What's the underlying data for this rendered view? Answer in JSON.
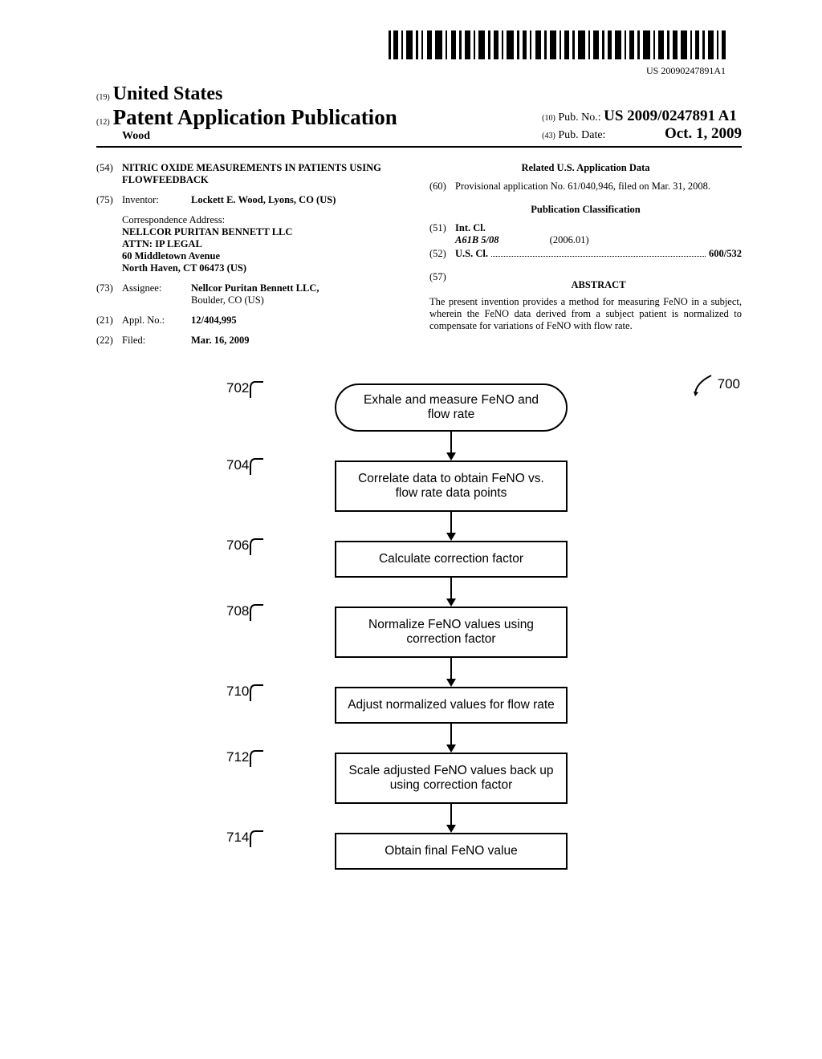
{
  "barcode": {
    "text": "US 20090247891A1"
  },
  "header": {
    "sub19": "(19)",
    "united_states": "United States",
    "sub12": "(12)",
    "pap": "Patent Application Publication",
    "author": "Wood",
    "sub10": "(10)",
    "pubno_label": "Pub. No.:",
    "pubno": "US 2009/0247891 A1",
    "sub43": "(43)",
    "pubdate_label": "Pub. Date:",
    "pubdate": "Oct. 1, 2009"
  },
  "left": {
    "n54": "(54)",
    "title": "NITRIC OXIDE MEASUREMENTS IN PATIENTS USING FLOWFEEDBACK",
    "n75": "(75)",
    "inv_label": "Inventor:",
    "inventor": "Lockett E. Wood, Lyons, CO (US)",
    "corr_label": "Correspondence Address:",
    "addr1": "NELLCOR PURITAN BENNETT LLC",
    "addr2": "ATTN: IP LEGAL",
    "addr3": "60 Middletown Avenue",
    "addr4": "North Haven, CT 06473 (US)",
    "n73": "(73)",
    "assignee_label": "Assignee:",
    "assignee": "Nellcor Puritan Bennett LLC,",
    "assignee2": "Boulder, CO (US)",
    "n21": "(21)",
    "appl_label": "Appl. No.:",
    "appl": "12/404,995",
    "n22": "(22)",
    "filed_label": "Filed:",
    "filed": "Mar. 16, 2009"
  },
  "right": {
    "related_heading": "Related U.S. Application Data",
    "n60": "(60)",
    "provisional": "Provisional application No. 61/040,946, filed on Mar. 31, 2008.",
    "pubclass_heading": "Publication Classification",
    "n51": "(51)",
    "intcl_label": "Int. Cl.",
    "intcl_code": "A61B 5/08",
    "intcl_year": "(2006.01)",
    "n52": "(52)",
    "uscl_label": "U.S. Cl.",
    "uscl_val": "600/532",
    "n57": "(57)",
    "abstract_label": "ABSTRACT",
    "abstract": "The present invention provides a method for measuring FeNO in a subject, wherein the FeNO data derived from a subject patient is normalized to compensate for variations of FeNO with flow rate."
  },
  "flowchart": {
    "ref": "700",
    "steps": [
      {
        "num": "702",
        "text": "Exhale and measure FeNO and flow rate",
        "shape": "rounded"
      },
      {
        "num": "704",
        "text": "Correlate data to obtain FeNO vs. flow rate data points",
        "shape": "rect"
      },
      {
        "num": "706",
        "text": "Calculate correction factor",
        "shape": "rect"
      },
      {
        "num": "708",
        "text": "Normalize FeNO values using correction factor",
        "shape": "rect"
      },
      {
        "num": "710",
        "text": "Adjust normalized values for flow rate",
        "shape": "rect"
      },
      {
        "num": "712",
        "text": "Scale adjusted FeNO values back up using correction factor",
        "shape": "rect"
      },
      {
        "num": "714",
        "text": "Obtain final FeNO value",
        "shape": "rect"
      }
    ]
  }
}
